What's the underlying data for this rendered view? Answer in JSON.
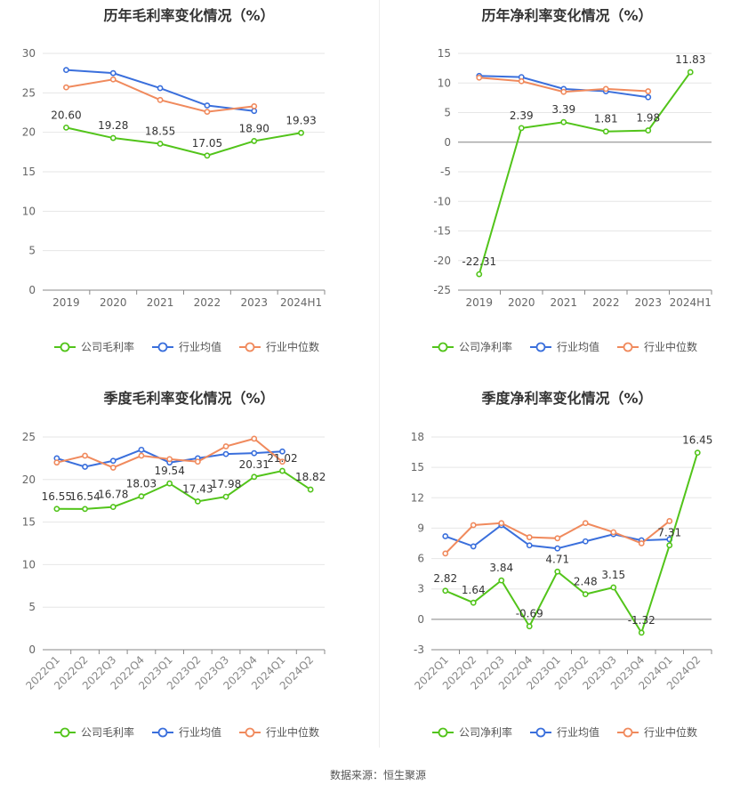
{
  "source": "数据来源：恒生聚源",
  "colors": {
    "company": "#52c41a",
    "avg": "#3a6fdc",
    "median": "#f08a5d"
  },
  "charts": [
    {
      "title": "历年毛利率变化情况（%）",
      "legend": [
        "公司毛利率",
        "行业均值",
        "行业中位数"
      ],
      "chart_data": {
        "type": "line",
        "title": "历年毛利率变化情况（%）",
        "categories": [
          "2019",
          "2020",
          "2021",
          "2022",
          "2023",
          "2024H1"
        ],
        "ylim": [
          0,
          30
        ],
        "yticks": [
          0,
          5,
          10,
          15,
          20,
          25,
          30
        ],
        "series": [
          {
            "name": "公司毛利率",
            "values": [
              20.6,
              19.28,
              18.55,
              17.05,
              18.9,
              19.93
            ],
            "labels": [
              "20.60",
              "19.28",
              "18.55",
              "17.05",
              "18.90",
              "19.93"
            ]
          },
          {
            "name": "行业均值",
            "values": [
              27.9,
              27.5,
              25.6,
              23.4,
              22.7,
              null
            ]
          },
          {
            "name": "行业中位数",
            "values": [
              25.7,
              26.7,
              24.1,
              22.6,
              23.3,
              null
            ]
          }
        ]
      }
    },
    {
      "title": "历年净利率变化情况（%）",
      "legend": [
        "公司净利率",
        "行业均值",
        "行业中位数"
      ],
      "chart_data": {
        "type": "line",
        "title": "历年净利率变化情况（%）",
        "categories": [
          "2019",
          "2020",
          "2021",
          "2022",
          "2023",
          "2024H1"
        ],
        "ylim": [
          -25,
          15
        ],
        "yticks": [
          -25,
          -20,
          -15,
          -10,
          -5,
          0,
          5,
          10,
          15
        ],
        "series": [
          {
            "name": "公司净利率",
            "values": [
              -22.31,
              2.39,
              3.39,
              1.81,
              1.98,
              11.83
            ],
            "labels": [
              "-22.31",
              "2.39",
              "3.39",
              "1.81",
              "1.98",
              "11.83"
            ]
          },
          {
            "name": "行业均值",
            "values": [
              11.2,
              11.0,
              9.0,
              8.6,
              7.6,
              null
            ]
          },
          {
            "name": "行业中位数",
            "values": [
              10.9,
              10.3,
              8.5,
              9.0,
              8.6,
              null
            ]
          }
        ]
      }
    },
    {
      "title": "季度毛利率变化情况（%）",
      "legend": [
        "公司毛利率",
        "行业均值",
        "行业中位数"
      ],
      "chart_data": {
        "type": "line",
        "title": "季度毛利率变化情况（%）",
        "categories": [
          "2022Q1",
          "2022Q2",
          "2022Q3",
          "2022Q4",
          "2023Q1",
          "2023Q2",
          "2023Q3",
          "2023Q4",
          "2024Q1",
          "2024Q2"
        ],
        "ylim": [
          0,
          25
        ],
        "yticks": [
          0,
          5,
          10,
          15,
          20,
          25
        ],
        "series": [
          {
            "name": "公司毛利率",
            "values": [
              16.55,
              16.54,
              16.78,
              18.03,
              19.54,
              17.43,
              17.98,
              20.31,
              21.02,
              18.82
            ],
            "labels": [
              "16.55",
              "16.54",
              "16.78",
              "18.03",
              "19.54",
              "17.43",
              "17.98",
              "20.31",
              "21.02",
              "18.82"
            ]
          },
          {
            "name": "行业均值",
            "values": [
              22.5,
              21.5,
              22.2,
              23.5,
              22.0,
              22.5,
              23.0,
              23.1,
              23.3,
              null
            ]
          },
          {
            "name": "行业中位数",
            "values": [
              22.0,
              22.8,
              21.4,
              22.8,
              22.4,
              22.1,
              23.9,
              24.8,
              22.1,
              null
            ]
          }
        ]
      }
    },
    {
      "title": "季度净利率变化情况（%）",
      "legend": [
        "公司净利率",
        "行业均值",
        "行业中位数"
      ],
      "chart_data": {
        "type": "line",
        "title": "季度净利率变化情况（%）",
        "categories": [
          "2022Q1",
          "2022Q2",
          "2022Q3",
          "2022Q4",
          "2023Q1",
          "2023Q2",
          "2023Q3",
          "2023Q4",
          "2024Q1",
          "2024Q2"
        ],
        "ylim": [
          -3,
          18
        ],
        "yticks": [
          -3,
          0,
          3,
          6,
          9,
          12,
          15,
          18
        ],
        "series": [
          {
            "name": "公司净利率",
            "values": [
              2.82,
              1.64,
              3.84,
              -0.69,
              4.71,
              2.48,
              3.15,
              -1.32,
              7.31,
              16.45
            ],
            "labels": [
              "2.82",
              "1.64",
              "3.84",
              "-0.69",
              "4.71",
              "2.48",
              "3.15",
              "-1.32",
              "7.31",
              "16.45"
            ]
          },
          {
            "name": "行业均值",
            "values": [
              8.2,
              7.2,
              9.3,
              7.3,
              7.0,
              7.7,
              8.4,
              7.8,
              7.9,
              null
            ]
          },
          {
            "name": "行业中位数",
            "values": [
              6.5,
              9.3,
              9.5,
              8.1,
              8.0,
              9.5,
              8.6,
              7.5,
              9.7,
              null
            ]
          }
        ]
      }
    }
  ]
}
